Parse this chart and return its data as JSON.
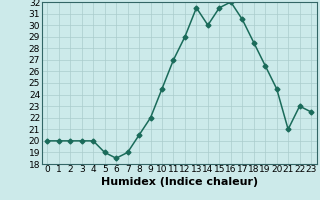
{
  "x": [
    0,
    1,
    2,
    3,
    4,
    5,
    6,
    7,
    8,
    9,
    10,
    11,
    12,
    13,
    14,
    15,
    16,
    17,
    18,
    19,
    20,
    21,
    22,
    23
  ],
  "y": [
    20,
    20,
    20,
    20,
    20,
    19,
    18.5,
    19,
    20.5,
    22,
    24.5,
    27,
    29,
    31.5,
    30,
    31.5,
    32,
    30.5,
    28.5,
    26.5,
    24.5,
    21,
    23,
    22.5
  ],
  "line_color": "#1a6b5a",
  "marker": "D",
  "marker_size": 2.5,
  "bg_color": "#cceaea",
  "grid_color": "#aacccc",
  "xlabel": "Humidex (Indice chaleur)",
  "xlabel_fontsize": 8,
  "ylim": [
    18,
    32
  ],
  "xlim": [
    -0.5,
    23.5
  ],
  "yticks": [
    18,
    19,
    20,
    21,
    22,
    23,
    24,
    25,
    26,
    27,
    28,
    29,
    30,
    31,
    32
  ],
  "xticks": [
    0,
    1,
    2,
    3,
    4,
    5,
    6,
    7,
    8,
    9,
    10,
    11,
    12,
    13,
    14,
    15,
    16,
    17,
    18,
    19,
    20,
    21,
    22,
    23
  ],
  "tick_fontsize": 6.5,
  "line_width": 1.1
}
